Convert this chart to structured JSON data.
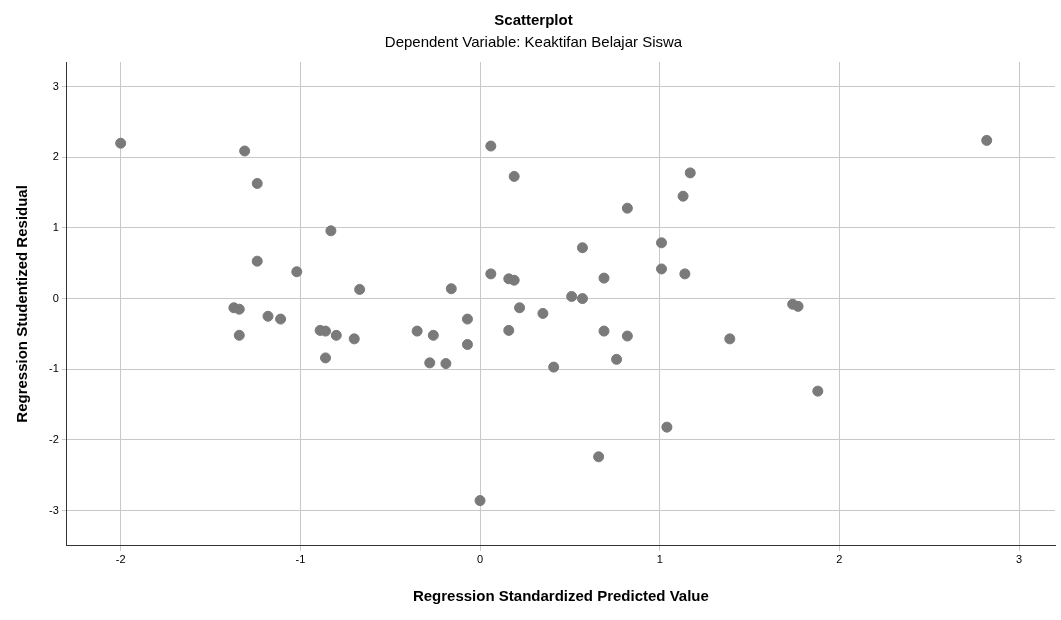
{
  "chart_data": {
    "type": "scatter",
    "title": "Scatterplot",
    "subtitle": "Dependent Variable: Keaktifan Belajar Siswa",
    "xlabel": "Regression Standardized Predicted Value",
    "ylabel": "Regression Studentized Residual",
    "x": [
      -2.0,
      -1.31,
      -1.24,
      -1.24,
      -1.37,
      -1.34,
      -1.34,
      -1.18,
      -1.11,
      -1.02,
      -0.83,
      -0.89,
      -0.86,
      -0.8,
      -0.86,
      -0.7,
      -0.67,
      -0.35,
      -0.28,
      -0.26,
      -0.19,
      -0.16,
      -0.07,
      -0.07,
      0.0,
      0.06,
      0.06,
      0.16,
      0.19,
      0.19,
      0.22,
      0.16,
      0.35,
      0.41,
      0.51,
      0.57,
      0.57,
      0.66,
      0.69,
      0.69,
      0.76,
      0.82,
      0.82,
      1.01,
      1.01,
      1.04,
      1.13,
      1.14,
      1.17,
      1.39,
      1.74,
      1.77,
      1.88,
      2.82
    ],
    "values": [
      2.2,
      2.09,
      1.63,
      0.53,
      -0.13,
      -0.15,
      -0.52,
      -0.25,
      -0.29,
      0.38,
      0.96,
      -0.45,
      -0.46,
      -0.52,
      -0.84,
      -0.57,
      0.13,
      -0.46,
      -0.91,
      -0.52,
      -0.92,
      0.14,
      -0.29,
      -0.65,
      -2.86,
      2.16,
      0.35,
      0.28,
      0.26,
      1.73,
      -0.13,
      -0.45,
      -0.21,
      -0.97,
      0.03,
      0.0,
      0.72,
      -2.24,
      0.29,
      -0.46,
      -0.86,
      1.28,
      -0.53,
      0.79,
      0.42,
      -1.82,
      1.45,
      0.35,
      1.78,
      -0.57,
      -0.08,
      -0.11,
      -1.31,
      2.24
    ],
    "color": "#7a7a7a",
    "marker": "circle",
    "grid": true,
    "xlim": [
      -2.3,
      3.2
    ],
    "xticks": [
      -2,
      -1,
      0,
      1,
      2,
      3
    ],
    "ylim": [
      -3.5,
      3.35
    ],
    "yticks": [
      -3,
      -2,
      -1,
      0,
      1,
      2,
      3
    ]
  }
}
